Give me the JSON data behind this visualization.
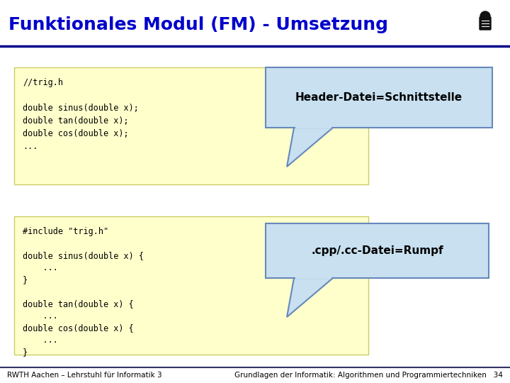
{
  "title": "Funktionales Modul (FM) - Umsetzung",
  "title_color": "#0000CC",
  "title_fontsize": 18,
  "bg_color": "#FFFFFF",
  "header_bar_color": "#00008B",
  "code_bg_color": "#FFFFCC",
  "callout_bg_color": "#C8E0F0",
  "callout_border_color": "#6688BB",
  "callout1_text": "Header-Datei=Schnittstelle",
  "callout2_text": ".cpp/.cc-Datei=Rumpf",
  "code1_lines": [
    "//trig.h",
    "",
    "double sinus(double x);",
    "double tan(double x);",
    "double cos(double x);",
    "..."
  ],
  "code2_lines": [
    "#include \"trig.h\"",
    "",
    "double sinus(double x) {",
    "    ...",
    "}",
    "",
    "double tan(double x) {",
    "    ...",
    "double cos(double x) {",
    "    ...",
    "}"
  ],
  "footer_left": "RWTH Aachen – Lehrstuhl für Informatik 3",
  "footer_right": "Grundlagen der Informatik: Algorithmen und Programmiertechniken   34",
  "footer_color": "#000000",
  "footer_fontsize": 7.5,
  "code_fontsize": 8.5,
  "callout_fontsize": 11
}
